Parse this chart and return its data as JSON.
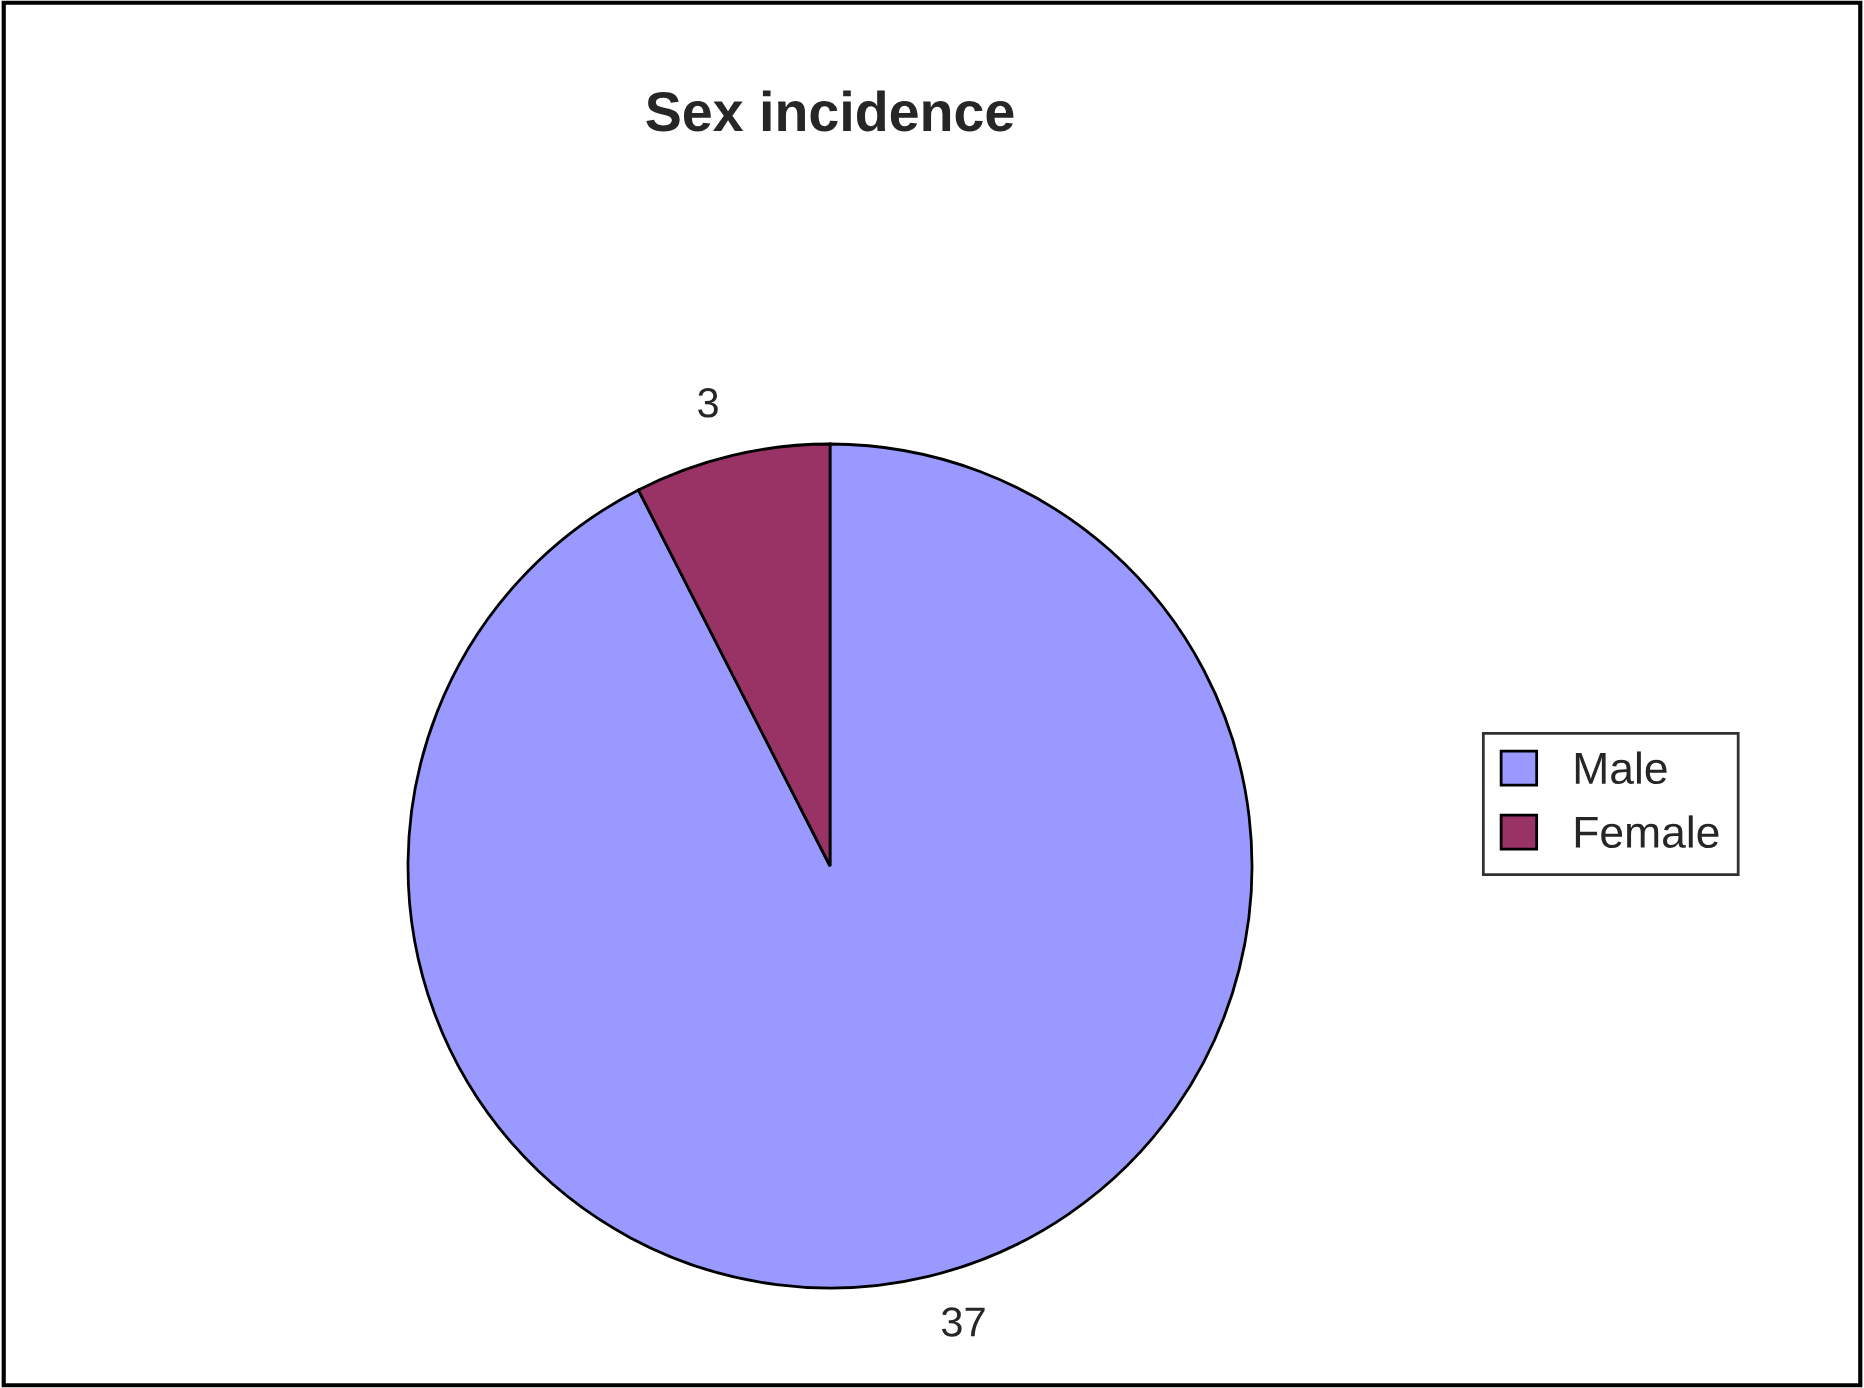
{
  "chart_data": {
    "type": "pie",
    "title": "Sex incidence",
    "categories": [
      "Male",
      "Female"
    ],
    "values": [
      37,
      3
    ],
    "colors": [
      "#9999ff",
      "#993366"
    ],
    "data_labels": true,
    "legend": "right"
  }
}
